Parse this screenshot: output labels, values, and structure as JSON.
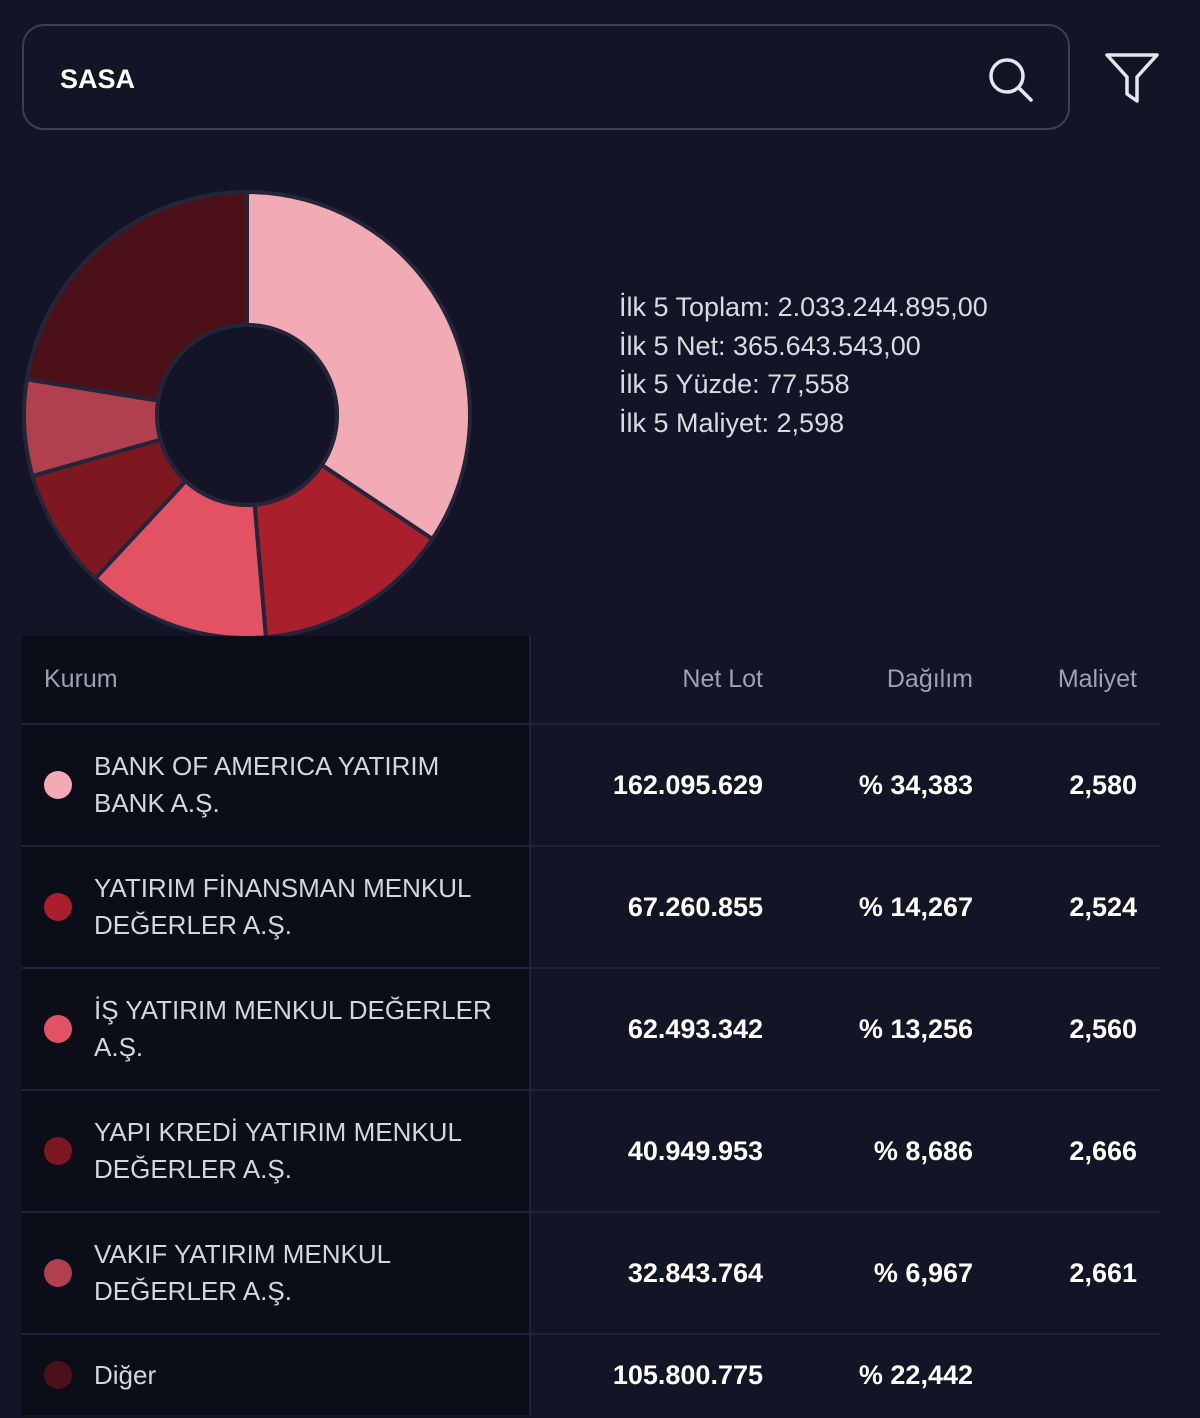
{
  "search": {
    "value": "SASA"
  },
  "summary": {
    "toplam": "İlk 5 Toplam: 2.033.244.895,00",
    "net": "İlk 5 Net: 365.643.543,00",
    "yuzde": "İlk 5 Yüzde: 77,558",
    "maliyet": "İlk 5 Maliyet: 2,598"
  },
  "chart_data": {
    "type": "pie",
    "variant": "donut",
    "categories": [
      "BANK OF AMERICA YATIRIM BANK A.Ş.",
      "YATIRIM FİNANSMAN MENKUL DEĞERLER A.Ş.",
      "İŞ YATIRIM MENKUL DEĞERLER A.Ş.",
      "YAPI KREDİ YATIRIM MENKUL DEĞERLER A.Ş.",
      "VAKIF YATIRIM MENKUL DEĞERLER A.Ş.",
      "Diğer"
    ],
    "values": [
      34.383,
      14.267,
      13.256,
      8.686,
      6.967,
      22.442
    ],
    "colors": [
      "#f2aab4",
      "#a9202c",
      "#e25263",
      "#7e1820",
      "#b0404e",
      "#4c1018"
    ]
  },
  "table": {
    "headers": {
      "kurum": "Kurum",
      "net_lot": "Net Lot",
      "dagilim": "Dağılım",
      "maliyet": "Maliyet"
    },
    "rows": [
      {
        "line1": "BANK OF AMERICA YATIRIM",
        "line2": "BANK A.Ş.",
        "net_lot": "162.095.629",
        "dagilim": "% 34,383",
        "maliyet": "2,580",
        "color": "#f2aab4"
      },
      {
        "line1": "YATIRIM FİNANSMAN MENKUL",
        "line2": "DEĞERLER A.Ş.",
        "net_lot": "67.260.855",
        "dagilim": "% 14,267",
        "maliyet": "2,524",
        "color": "#a9202c"
      },
      {
        "line1": "İŞ YATIRIM MENKUL DEĞERLER",
        "line2": "A.Ş.",
        "net_lot": "62.493.342",
        "dagilim": "% 13,256",
        "maliyet": "2,560",
        "color": "#e25263"
      },
      {
        "line1": "YAPI KREDİ YATIRIM MENKUL",
        "line2": "DEĞERLER A.Ş.",
        "net_lot": "40.949.953",
        "dagilim": "% 8,686",
        "maliyet": "2,666",
        "color": "#7e1820"
      },
      {
        "line1": "VAKIF YATIRIM MENKUL",
        "line2": "DEĞERLER A.Ş.",
        "net_lot": "32.843.764",
        "dagilim": "% 6,967",
        "maliyet": "2,661",
        "color": "#b0404e"
      },
      {
        "line1": "Diğer",
        "line2": "",
        "net_lot": "105.800.775",
        "dagilim": "% 22,442",
        "maliyet": "",
        "color": "#4c1018"
      }
    ]
  }
}
